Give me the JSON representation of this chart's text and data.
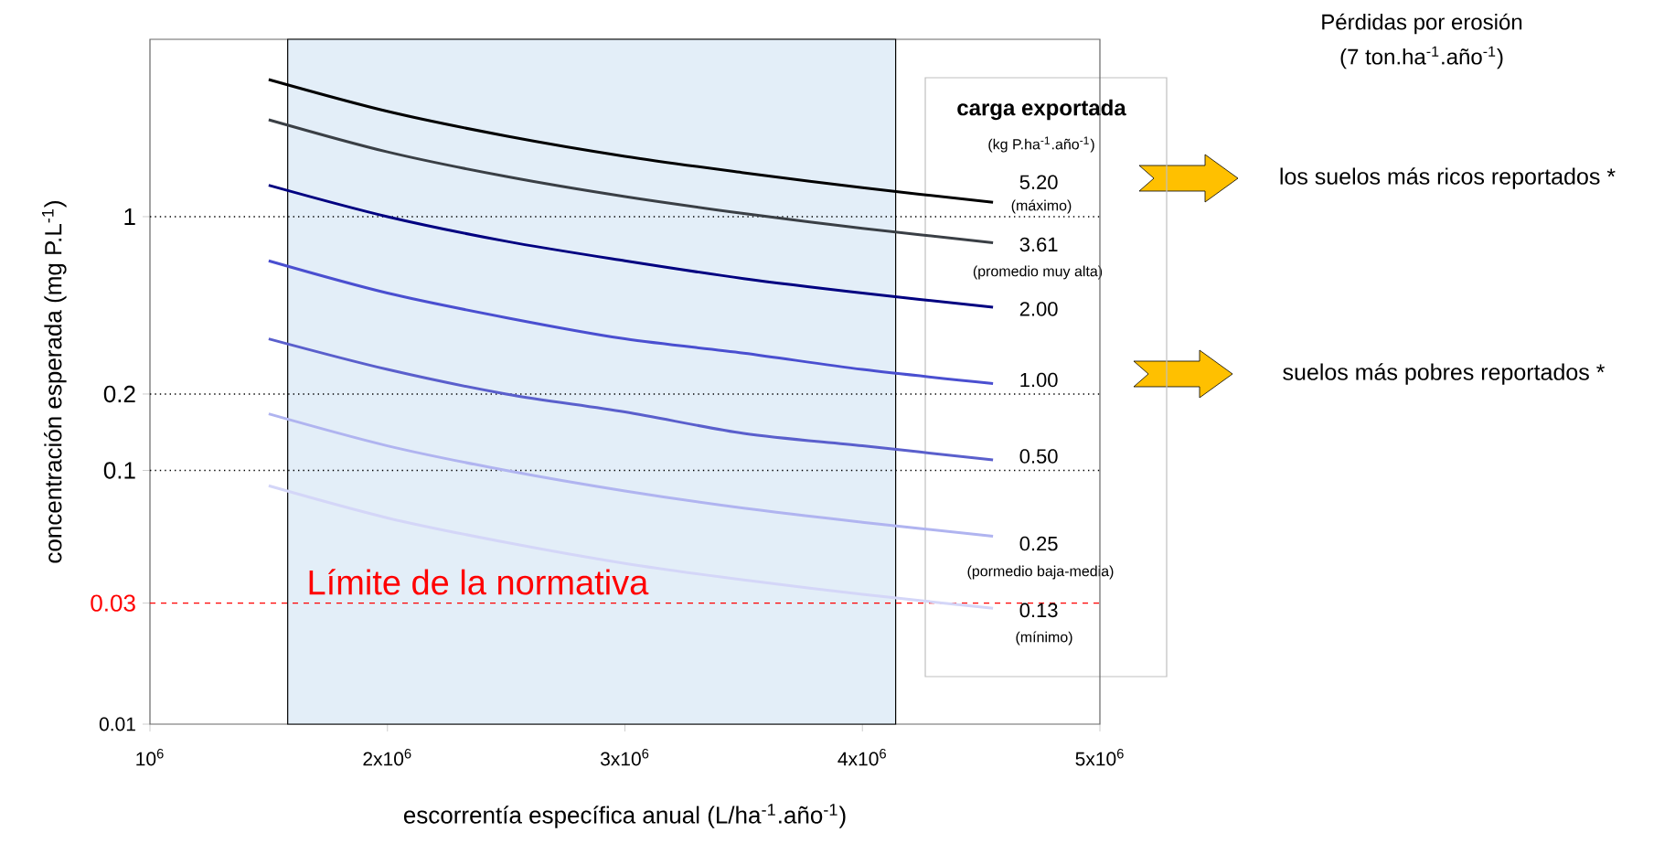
{
  "chart_data": {
    "type": "line",
    "log": "y",
    "xlabel": "escorrentía específica anual (L/ha$^{-1}$.año$^{-1}$)",
    "ylabel": "concentración esperada (mg P.L$^{-1}$)",
    "legend_title": "carga exportada",
    "x": [
      1500000,
      2000000,
      2500000,
      3000000,
      3500000,
      4000000,
      4550000
    ],
    "series": [
      {
        "name": "5.20",
        "color": "#000000",
        "values": [
          3.47,
          2.6,
          2.08,
          1.73,
          1.49,
          1.3,
          1.14
        ]
      },
      {
        "name": "3.61",
        "color": "#3a3f45",
        "values": [
          2.41,
          1.8,
          1.44,
          1.2,
          1.03,
          0.9,
          0.79
        ]
      },
      {
        "name": "2.00",
        "color": "#000080",
        "values": [
          1.33,
          1.0,
          0.8,
          0.67,
          0.57,
          0.5,
          0.44
        ]
      },
      {
        "name": "1.00",
        "color": "#4a4fd0",
        "values": [
          0.67,
          0.5,
          0.4,
          0.33,
          0.29,
          0.25,
          0.22
        ]
      },
      {
        "name": "0.50",
        "color": "#5a5fcc",
        "values": [
          0.33,
          0.25,
          0.2,
          0.17,
          0.14,
          0.125,
          0.11
        ]
      },
      {
        "name": "0.25",
        "color": "#b0b4f0",
        "values": [
          0.167,
          0.125,
          0.1,
          0.083,
          0.071,
          0.0625,
          0.055
        ]
      },
      {
        "name": "0.13",
        "color": "#d4d6f8",
        "values": [
          0.087,
          0.065,
          0.052,
          0.043,
          0.037,
          0.0325,
          0.0286
        ]
      }
    ],
    "xlim": [
      1000000,
      5000000
    ],
    "xticks": [
      {
        "value": 1000000,
        "label": "10$^{6}$"
      },
      {
        "value": 2000000,
        "label": "2x10$^{6}$"
      },
      {
        "value": 3000000,
        "label": "3x10$^{6}$"
      },
      {
        "value": 4000000,
        "label": "4x10$^{6}$"
      },
      {
        "value": 5000000,
        "label": "5x10$^{6}$"
      }
    ],
    "ylim": [
      0.01,
      5
    ],
    "yticks": [
      0.01,
      0.03,
      0.1,
      0.2,
      1
    ],
    "ref_lines": [
      {
        "axis": "y",
        "value": 1,
        "line_style": "dotted",
        "color": "#000000"
      },
      {
        "axis": "y",
        "value": 0.2,
        "line_style": "dotted",
        "color": "#000000"
      },
      {
        "axis": "y",
        "value": 0.1,
        "line_style": "dotted",
        "color": "#000000"
      },
      {
        "axis": "y",
        "value": 0.03,
        "label": "Límite de la normativa",
        "line_style": "dashed",
        "color": "#ff0000"
      }
    ],
    "bands": [
      {
        "axis": "x",
        "from": 1580000,
        "to": 4140000,
        "color": "#e3eef8"
      }
    ],
    "annotations": [
      "(kg P.ha$^{-1}$.año$^{-1}$)",
      "(máximo)",
      "(promedio muy alta)",
      "(pormedio baja-media)",
      "(mínimo)",
      "Pérdidas por erosión",
      "(7 ton.ha$^{-1}$.año$^{-1}$)",
      "los suelos más ricos reportados *",
      "suelos más pobres reportados *"
    ]
  }
}
